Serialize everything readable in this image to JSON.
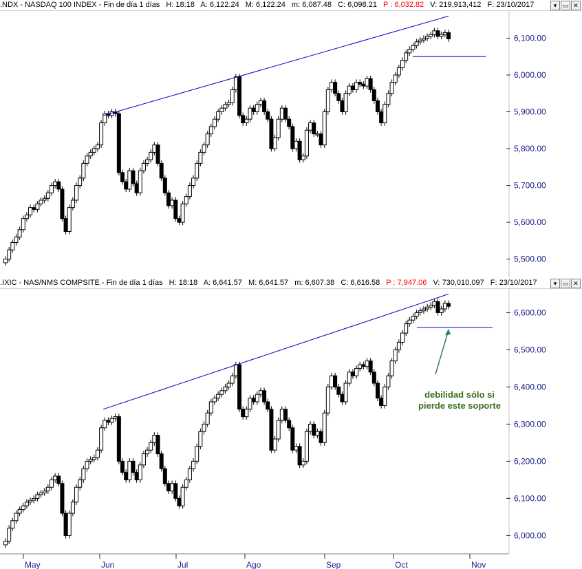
{
  "colors": {
    "axis": "#1a1a8c",
    "trendline": "#0000cc",
    "candle": "#000000",
    "red_values": "#ff0000",
    "annotation": "#3a6e1e",
    "arrow": "#2e7d5e"
  },
  "panels": [
    {
      "header": {
        "symbol": ".NDX - NASDAQ 100 INDEX - Fin de día 1 días",
        "h": "H: 18:18",
        "a": "A: 6,122.24",
        "m": "M: 6,122.24",
        "min": "m: 6,087.48",
        "c": "C: 6,098.21",
        "p": "P : 6,032.82",
        "v": "V: 219,913,412",
        "f": "F: 23/10/2017"
      },
      "window_buttons": [
        "minimize-icon",
        "restore-icon",
        "close-icon"
      ],
      "window_glyphs": [
        "▾",
        "▭",
        "✕"
      ]
    },
    {
      "header": {
        "symbol": ".IXIC - NAS/NMS COMPSITE - Fin de día 1 días",
        "h": "H: 18:18",
        "a": "A: 6,641.57",
        "m": "M: 6,641.57",
        "min": "m: 6,607.38",
        "c": "C: 6,616.58",
        "p": "P : 7,947.06",
        "v": "V: 730,010,097",
        "f": "F: 23/10/2017"
      },
      "window_buttons": [
        "minimize-icon",
        "restore-icon",
        "close-icon"
      ],
      "window_glyphs": [
        "▾",
        "▭",
        "✕"
      ]
    }
  ],
  "annotation": {
    "line1": "debilidad sólo si",
    "line2": "pierde este soporte"
  },
  "chart_data": [
    {
      "type": "candlestick",
      "title": ".NDX - NASDAQ 100 INDEX",
      "categories": [
        "May",
        "Jun",
        "Jul",
        "Ago",
        "Sep",
        "Oct",
        "Nov"
      ],
      "ylim": [
        5460,
        6170
      ],
      "y_ticks": [
        "5,500.00",
        "5,600.00",
        "5,700.00",
        "5,800.00",
        "5,900.00",
        "6,000.00",
        "6,100.00"
      ],
      "y_tick_values": [
        5500,
        5600,
        5700,
        5800,
        5900,
        6000,
        6100
      ],
      "closes": [
        5500,
        5525,
        5545,
        5560,
        5580,
        5610,
        5620,
        5640,
        5635,
        5650,
        5660,
        5665,
        5680,
        5700,
        5710,
        5690,
        5610,
        5575,
        5640,
        5660,
        5700,
        5720,
        5760,
        5780,
        5790,
        5800,
        5810,
        5870,
        5895,
        5890,
        5900,
        5895,
        5735,
        5710,
        5690,
        5740,
        5705,
        5680,
        5740,
        5760,
        5770,
        5790,
        5810,
        5760,
        5720,
        5680,
        5645,
        5660,
        5610,
        5600,
        5650,
        5670,
        5700,
        5720,
        5760,
        5790,
        5810,
        5840,
        5860,
        5880,
        5900,
        5910,
        5920,
        5925,
        5960,
        5995,
        5890,
        5870,
        5880,
        5910,
        5900,
        5920,
        5930,
        5900,
        5880,
        5800,
        5830,
        5880,
        5910,
        5880,
        5860,
        5800,
        5820,
        5770,
        5780,
        5850,
        5870,
        5840,
        5840,
        5810,
        5900,
        5960,
        5980,
        5950,
        5930,
        5900,
        5950,
        5970,
        5960,
        5980,
        5975,
        5970,
        5990,
        5960,
        5930,
        5900,
        5870,
        5920,
        5950,
        5980,
        6000,
        6020,
        6040,
        6060,
        6070,
        6080,
        6090,
        6095,
        6100,
        6105,
        6110,
        6120,
        6105,
        6110,
        6115,
        6098
      ],
      "support_level": 6050,
      "trendline": {
        "from": [
          "Jun",
          5890
        ],
        "to": [
          "Oct",
          6160
        ]
      }
    },
    {
      "type": "candlestick",
      "title": ".IXIC - NAS/NMS COMPSITE",
      "categories": [
        "May",
        "Jun",
        "Jul",
        "Ago",
        "Sep",
        "Oct",
        "Nov"
      ],
      "ylim": [
        5960,
        6660
      ],
      "y_ticks": [
        "6,000.00",
        "6,100.00",
        "6,200.00",
        "6,300.00",
        "6,400.00",
        "6,500.00",
        "6,600.00"
      ],
      "y_tick_values": [
        6000,
        6100,
        6200,
        6300,
        6400,
        6500,
        6600
      ],
      "closes": [
        5985,
        6020,
        6040,
        6060,
        6070,
        6080,
        6090,
        6095,
        6100,
        6110,
        6115,
        6120,
        6130,
        6150,
        6160,
        6140,
        6060,
        6000,
        6060,
        6090,
        6130,
        6150,
        6180,
        6200,
        6205,
        6210,
        6230,
        6290,
        6310,
        6305,
        6315,
        6320,
        6200,
        6170,
        6150,
        6200,
        6170,
        6150,
        6190,
        6220,
        6230,
        6250,
        6270,
        6220,
        6180,
        6140,
        6120,
        6140,
        6100,
        6080,
        6130,
        6150,
        6180,
        6200,
        6240,
        6280,
        6300,
        6330,
        6360,
        6370,
        6380,
        6390,
        6400,
        6410,
        6430,
        6460,
        6340,
        6320,
        6340,
        6370,
        6360,
        6380,
        6390,
        6360,
        6340,
        6230,
        6260,
        6310,
        6340,
        6310,
        6290,
        6230,
        6240,
        6190,
        6200,
        6280,
        6300,
        6270,
        6280,
        6250,
        6330,
        6400,
        6430,
        6400,
        6380,
        6360,
        6410,
        6440,
        6430,
        6450,
        6460,
        6455,
        6470,
        6440,
        6410,
        6370,
        6350,
        6400,
        6430,
        6470,
        6500,
        6520,
        6545,
        6570,
        6580,
        6590,
        6600,
        6605,
        6610,
        6615,
        6620,
        6630,
        6600,
        6610,
        6625,
        6617
      ],
      "support_level": 6560,
      "trendline": {
        "from": [
          "Jun",
          6340
        ],
        "to": [
          "Oct",
          6650
        ]
      }
    }
  ]
}
